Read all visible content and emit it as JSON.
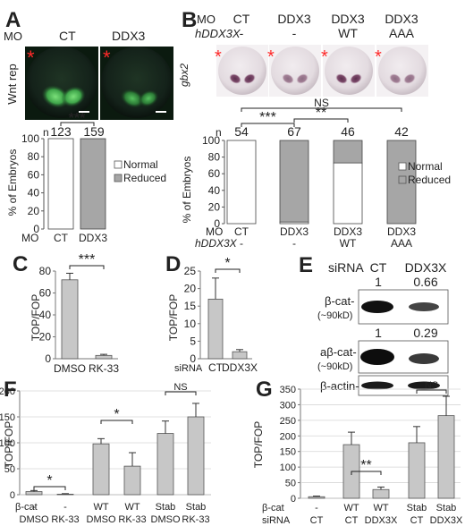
{
  "panels": {
    "A": {
      "letter": "A",
      "mo": "MO",
      "conds": [
        "CT",
        "DDX3"
      ],
      "ylabel_image": "Wnt rep",
      "star": "*",
      "n_label": "n",
      "n_values": [
        "123",
        "159"
      ],
      "sig": "***",
      "ylabel": "% of Embryos",
      "ticks": [
        "0",
        "20",
        "40",
        "60",
        "80",
        "100"
      ],
      "legend": [
        "Normal",
        "Reduced"
      ],
      "x_mo": "MO",
      "x": [
        "CT",
        "DDX3"
      ]
    },
    "B": {
      "letter": "B",
      "mo": "MO",
      "hddx3x": "hDDX3X",
      "cols": [
        {
          "mo": "CT",
          "h": "-"
        },
        {
          "mo": "DDX3",
          "h": "-"
        },
        {
          "mo": "DDX3",
          "h": "WT"
        },
        {
          "mo": "DDX3",
          "h": "AAA"
        }
      ],
      "gene": "gbx2",
      "star": "*",
      "n_label": "n",
      "n_values": [
        "54",
        "67",
        "46",
        "42"
      ],
      "sig": [
        "***",
        "**",
        "NS"
      ],
      "ylabel": "% of Embryos",
      "ticks": [
        "0",
        "20",
        "40",
        "60",
        "80",
        "100"
      ],
      "legend": [
        "Normal",
        "Reduced"
      ]
    },
    "C": {
      "letter": "C",
      "ylabel": "TOP/FOP",
      "sig": "***"
    },
    "D": {
      "letter": "D",
      "ylabel": "TOP/FOP",
      "sig": "*",
      "sirna": "siRNA"
    },
    "E": {
      "letter": "E",
      "sirna": "siRNA",
      "lanes": [
        "CT",
        "DDX3X"
      ],
      "rows": [
        {
          "label": "β-cat-",
          "mw": "(~90kD)",
          "quant": [
            "1",
            "0.66"
          ]
        },
        {
          "label": "aβ-cat-",
          "mw": "(~90kD)",
          "quant": [
            "1",
            "0.29"
          ]
        },
        {
          "label": "β-actin-",
          "mw": "",
          "quant": []
        }
      ]
    },
    "F": {
      "letter": "F",
      "ylabel": "TOP/FOP",
      "sig": [
        "*",
        "*",
        "NS"
      ],
      "row1_label": "β-cat",
      "row1": [
        "-",
        "-",
        "WT",
        "WT",
        "Stab",
        "Stab"
      ],
      "row2": [
        "DMSO",
        "RK-33",
        "DMSO",
        "RK-33",
        "DMSO",
        "RK-33"
      ]
    },
    "G": {
      "letter": "G",
      "ylabel": "TOP/FOP",
      "sig": [
        "**",
        "NS"
      ],
      "row1_label": "β-cat",
      "row2_label": "siRNA",
      "row1": [
        "-",
        "WT",
        "WT",
        "Stab",
        "Stab"
      ],
      "row2": [
        "CT",
        "CT",
        "DDX3X",
        "CT",
        "DDX3X"
      ]
    }
  },
  "chart_data": [
    {
      "panel": "A",
      "type": "bar",
      "stacked": true,
      "categories": [
        "CT",
        "DDX3"
      ],
      "series": [
        {
          "name": "Normal",
          "values": [
            100,
            0
          ]
        },
        {
          "name": "Reduced",
          "values": [
            0,
            100
          ]
        }
      ],
      "ylabel": "% of Embryos",
      "ylim": [
        0,
        100
      ],
      "colors": {
        "Normal": "#ffffff",
        "Reduced": "#a6a6a6"
      }
    },
    {
      "panel": "B",
      "type": "bar",
      "stacked": true,
      "categories": [
        "CT",
        "DDX3",
        "DDX3 WT",
        "DDX3 AAA"
      ],
      "series": [
        {
          "name": "Normal",
          "values": [
            100,
            2,
            73,
            0
          ]
        },
        {
          "name": "Reduced",
          "values": [
            0,
            98,
            27,
            100
          ]
        }
      ],
      "ylabel": "% of Embryos",
      "ylim": [
        0,
        100
      ]
    },
    {
      "panel": "C",
      "type": "bar",
      "categories": [
        "DMSO",
        "RK-33"
      ],
      "values": [
        72,
        3
      ],
      "errors": [
        6,
        1
      ],
      "ylabel": "TOP/FOP",
      "ylim": [
        0,
        80
      ],
      "ticks": [
        0,
        20,
        40,
        60,
        80
      ]
    },
    {
      "panel": "D",
      "type": "bar",
      "categories": [
        "CT",
        "DDX3X"
      ],
      "values": [
        17,
        2
      ],
      "errors": [
        6,
        0.6
      ],
      "ylabel": "TOP/FOP",
      "ylim": [
        0,
        25
      ],
      "ticks": [
        0,
        5,
        10,
        15,
        20,
        25
      ]
    },
    {
      "panel": "F",
      "type": "bar",
      "categories": [
        "DMSO",
        "RK-33",
        "DMSO",
        "RK-33",
        "DMSO",
        "RK-33"
      ],
      "values": [
        6,
        1,
        98,
        55,
        118,
        150
      ],
      "errors": [
        2,
        1,
        10,
        26,
        24,
        26
      ],
      "ylabel": "TOP/FOP",
      "ylim": [
        0,
        200
      ],
      "ticks": [
        0,
        50,
        100,
        150,
        200
      ]
    },
    {
      "panel": "G",
      "type": "bar",
      "categories": [
        "CT",
        "CT",
        "DDX3X",
        "CT",
        "DDX3X"
      ],
      "values": [
        5,
        172,
        28,
        178,
        265
      ],
      "errors": [
        2,
        40,
        8,
        52,
        62
      ],
      "ylabel": "TOP/FOP",
      "ylim": [
        0,
        350
      ],
      "ticks": [
        0,
        50,
        100,
        150,
        200,
        250,
        300,
        350
      ]
    }
  ]
}
